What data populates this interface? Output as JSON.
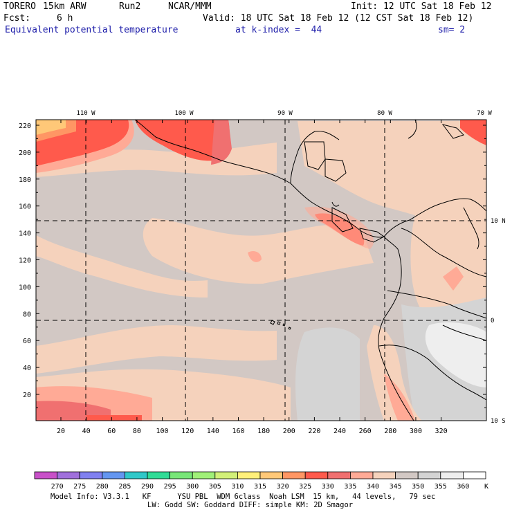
{
  "header": {
    "model": "TORERO",
    "resolution": "15km ARW",
    "run": "Run2",
    "center": "NCAR/MMM",
    "init": "Init: 12 UTC Sat 18 Feb 12",
    "fcst_label": "Fcst:",
    "fcst_value": "6 h",
    "valid": "Valid: 18 UTC Sat 18 Feb 12 (12 CST Sat 18 Feb 12)",
    "field": "Equivalent potential temperature",
    "level": "at k-index =  44",
    "smoothing": "sm= 2"
  },
  "map": {
    "top_lon_labels": [
      "110 W",
      "100 W",
      "90 W",
      "80 W",
      "70 W"
    ],
    "right_lat_labels": [
      "10 N",
      "0",
      "10 S"
    ],
    "y_ticks": [
      "220",
      "200",
      "180",
      "160",
      "140",
      "120",
      "100",
      "80",
      "60",
      "40",
      "20"
    ],
    "x_ticks": [
      "20",
      "40",
      "60",
      "80",
      "100",
      "120",
      "140",
      "160",
      "180",
      "200",
      "220",
      "240",
      "260",
      "280",
      "300",
      "320"
    ]
  },
  "colorbar": {
    "levels": [
      "270",
      "275",
      "280",
      "285",
      "290",
      "295",
      "300",
      "305",
      "310",
      "315",
      "320",
      "325",
      "330",
      "335",
      "340",
      "345",
      "350",
      "355",
      "360"
    ],
    "unit": "K",
    "colors": [
      "#c850c8",
      "#a070dc",
      "#8080f0",
      "#6496f0",
      "#30c8c8",
      "#30dc96",
      "#78e678",
      "#a0f078",
      "#d2f078",
      "#fff07a",
      "#ffc878",
      "#ff9664",
      "#ff5a4c",
      "#f07070",
      "#ffaa96",
      "#f5d2bc",
      "#d2c8c4",
      "#d4d4d4",
      "#eeeeee",
      "#ffffff"
    ]
  },
  "footer": {
    "line1": "Model Info: V3.3.1   KF      YSU PBL  WDM 6class  Noah LSM  15 km,   44 levels,   79 sec",
    "line2": "LW: Godd SW: Goddard DIFF: simple KM: 2D Smagor"
  }
}
